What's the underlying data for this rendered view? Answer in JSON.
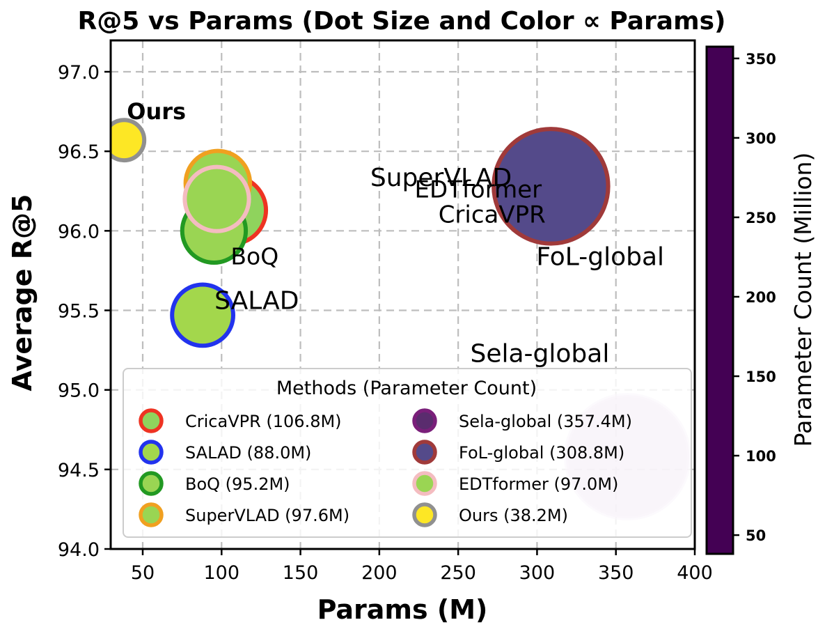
{
  "chart_data": {
    "type": "scatter",
    "title": "R@5 vs Params (Dot Size and Color ∝ Params)",
    "xlabel": "Params (M)",
    "ylabel": "Average R@5",
    "xlim": [
      30,
      400
    ],
    "ylim": [
      94.0,
      97.2
    ],
    "xticks": [
      50,
      100,
      150,
      200,
      250,
      300,
      350,
      400
    ],
    "yticks": [
      "94.0",
      "94.5",
      "95.0",
      "95.5",
      "96.0",
      "96.5",
      "97.0"
    ],
    "grid": true,
    "colorbar": {
      "label": "Parameter Count (Million)",
      "min": 38.2,
      "max": 357.4,
      "ticks": [
        50,
        100,
        150,
        200,
        250,
        300,
        350
      ],
      "colormap": "viridis",
      "stops": [
        "#440154",
        "#482878",
        "#3e4989",
        "#31688e",
        "#26828e",
        "#1f9e89",
        "#35b779",
        "#6ece58",
        "#b5de2b",
        "#fde725"
      ]
    },
    "legend": {
      "title": "Methods (Parameter Count)",
      "placement": "lower-left",
      "entries": [
        {
          "label": "CricaVPR (106.8M)",
          "fill": "#8fd35d",
          "edge": "#ee3322"
        },
        {
          "label": "SALAD (88.0M)",
          "fill": "#a3d74c",
          "edge": "#2233ee"
        },
        {
          "label": "BoQ (95.2M)",
          "fill": "#9ad553",
          "edge": "#229922"
        },
        {
          "label": "SuperVLAD (97.6M)",
          "fill": "#99d553",
          "edge": "#f0a020"
        },
        {
          "label": "Sela-global (357.4M)",
          "fill": "#5a2c6e",
          "edge": "#7a1f7a"
        },
        {
          "label": "FoL-global (308.8M)",
          "fill": "#544a8a",
          "edge": "#a03a3a"
        },
        {
          "label": "EDTformer (97.0M)",
          "fill": "#9ad553",
          "edge": "#f4bcc0"
        },
        {
          "label": "Ours (38.2M)",
          "fill": "#fde725",
          "edge": "#909090"
        }
      ]
    },
    "points": [
      {
        "name": "CricaVPR",
        "x": 106.8,
        "y": 96.13,
        "label": "CricaVPR",
        "fill": "#8fd35d",
        "edge": "#ee3322",
        "alpha": 1
      },
      {
        "name": "SuperVLAD",
        "x": 97.6,
        "y": 96.3,
        "label": "SuperVLAD",
        "fill": "#99d553",
        "edge": "#f0a020",
        "alpha": 1
      },
      {
        "name": "BoQ",
        "x": 95.2,
        "y": 96.0,
        "label": "BoQ",
        "fill": "#9ad553",
        "edge": "#229922",
        "alpha": 1
      },
      {
        "name": "EDTformer",
        "x": 97.0,
        "y": 96.2,
        "label": "EDTformer",
        "fill": "#9ad553",
        "edge": "#f4bcc0",
        "alpha": 1
      },
      {
        "name": "SALAD",
        "x": 88.0,
        "y": 95.47,
        "label": "SALAD",
        "fill": "#a3d74c",
        "edge": "#2233ee",
        "alpha": 1
      },
      {
        "name": "FoL-global",
        "x": 308.8,
        "y": 96.28,
        "label": "FoL-global",
        "fill": "#544a8a",
        "edge": "#a03a3a",
        "alpha": 1
      },
      {
        "name": "Sela-global",
        "x": 357.4,
        "y": 94.58,
        "label": "Sela-global",
        "fill": "#c9a8d2",
        "edge": "#e2cfe8",
        "alpha": 0.65
      },
      {
        "name": "Ours",
        "x": 38.2,
        "y": 96.57,
        "label": "Ours",
        "fill": "#fde725",
        "edge": "#909090",
        "alpha": 1
      }
    ]
  }
}
